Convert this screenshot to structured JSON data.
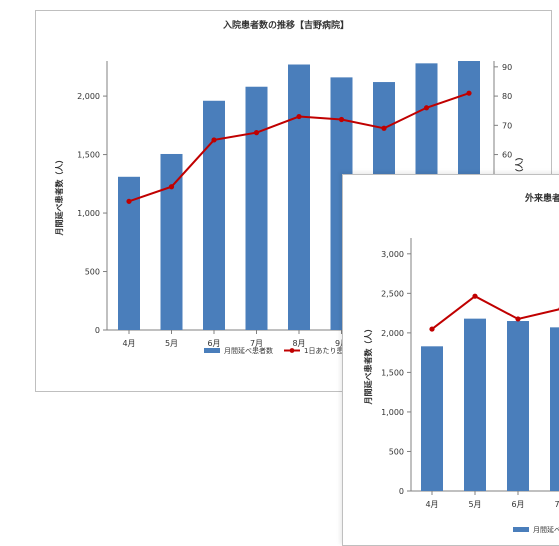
{
  "colors": {
    "bar": "#4a7ebb",
    "line": "#c00000",
    "axis": "#808080",
    "text": "#333333"
  },
  "chart_data": [
    {
      "type": "bar",
      "title": "入院患者数の推移【吉野病院】",
      "categories": [
        "4月",
        "5月",
        "6月",
        "7月",
        "8月",
        "9月",
        "10月",
        "11月",
        "12月"
      ],
      "ylabel": "月間延べ患者数（人）",
      "y2label": "1日あたり患者数（人）",
      "ylim": [
        0,
        2300
      ],
      "y_ticks": [
        "0",
        "500",
        "1,000",
        "1,500",
        "2,000"
      ],
      "y2lim": [
        0,
        92
      ],
      "y2_ticks": [
        "60",
        "70",
        "80",
        "90"
      ],
      "series": [
        {
          "name": "月間延べ患者数",
          "type": "bar",
          "axis": "left",
          "values": [
            1310,
            1505,
            1960,
            2080,
            2270,
            2160,
            2120,
            2280,
            2300
          ]
        },
        {
          "name": "1日あたり患者数",
          "type": "line",
          "axis": "right",
          "values": [
            44,
            49,
            65,
            67.5,
            73,
            72,
            69,
            76,
            81
          ]
        }
      ],
      "legend": "bottom"
    },
    {
      "type": "bar",
      "title": "外来患者",
      "categories": [
        "4月",
        "5月",
        "6月",
        "7月"
      ],
      "ylabel": "月間延べ患者数（人）",
      "ylim": [
        0,
        3200
      ],
      "y_ticks": [
        "0",
        "500",
        "1,000",
        "1,500",
        "2,000",
        "2,500",
        "3,000"
      ],
      "line_ylim": [
        0,
        100
      ],
      "series": [
        {
          "name": "月間延べ患者数",
          "type": "bar",
          "axis": "left",
          "values": [
            1830,
            2180,
            2150,
            2070
          ]
        },
        {
          "type": "line",
          "axis": "right",
          "values": [
            64,
            77,
            68,
            72
          ]
        }
      ],
      "legend": "bottom"
    }
  ]
}
